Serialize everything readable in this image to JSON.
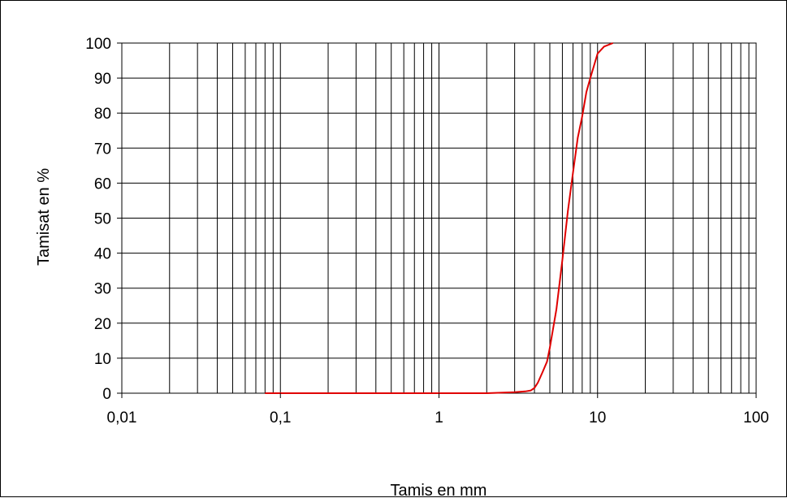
{
  "chart_data": {
    "type": "line",
    "title": "",
    "xlabel": "Tamis en mm",
    "ylabel": "Tamisat en %",
    "x_scale": "log",
    "xlim": [
      0.01,
      100
    ],
    "ylim": [
      0,
      100
    ],
    "grid": true,
    "x_tick_labels": [
      "0,01",
      "0,1",
      "1",
      "10",
      "100"
    ],
    "y_tick_labels": [
      "0",
      "10",
      "20",
      "30",
      "40",
      "50",
      "60",
      "70",
      "80",
      "90",
      "100"
    ],
    "series": [
      {
        "color": "#e00000",
        "x": [
          0.08,
          0.1,
          0.2,
          0.5,
          1,
          2,
          3,
          3.5,
          3.8,
          4,
          4.2,
          4.5,
          4.8,
          5,
          5.5,
          6,
          6.5,
          7,
          7.5,
          8,
          8.5,
          9,
          10,
          11,
          12.5
        ],
        "y": [
          0,
          0,
          0,
          0,
          0,
          0,
          0.3,
          0.5,
          0.8,
          1.5,
          3,
          6,
          9,
          13,
          24,
          38,
          52,
          63,
          73,
          79,
          86,
          90,
          97,
          99,
          100
        ]
      }
    ]
  }
}
